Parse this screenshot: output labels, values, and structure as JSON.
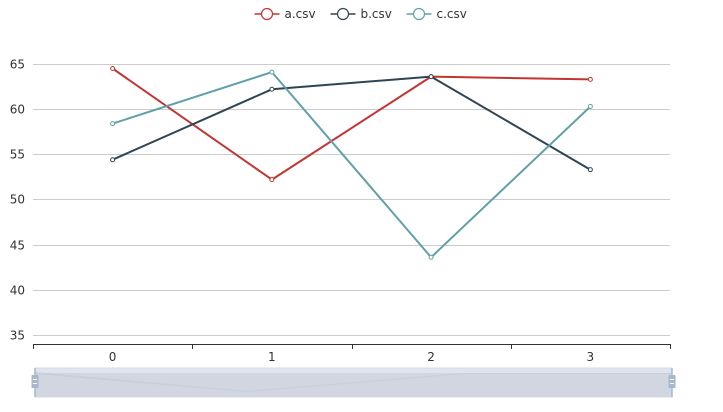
{
  "chart_data": {
    "type": "line",
    "title": "",
    "xlabel": "",
    "ylabel": "",
    "x": [
      "0",
      "1",
      "2",
      "3"
    ],
    "ylim": [
      34,
      65
    ],
    "y_ticks": [
      35,
      40,
      45,
      50,
      55,
      60,
      65
    ],
    "grid": true,
    "legend_position": "top-center",
    "series": [
      {
        "name": "a.csv",
        "color": "#c23531",
        "values": [
          64.5,
          52.2,
          63.6,
          63.3
        ]
      },
      {
        "name": "b.csv",
        "color": "#2f4554",
        "values": [
          54.4,
          62.2,
          63.6,
          53.3
        ]
      },
      {
        "name": "c.csv",
        "color": "#61a0a8",
        "values": [
          58.4,
          64.1,
          43.6,
          60.3
        ]
      }
    ],
    "data_zoom": {
      "start": 0,
      "end": 100
    }
  }
}
